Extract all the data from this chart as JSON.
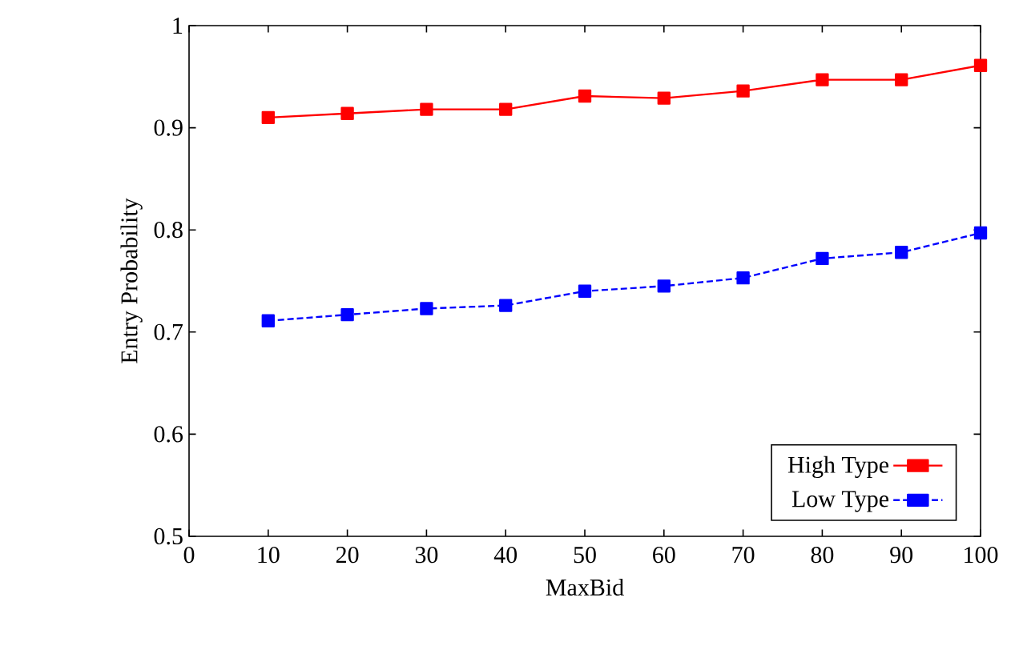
{
  "chart_data": {
    "type": "line",
    "xlabel": "MaxBid",
    "ylabel": "Entry Probability",
    "x": [
      10,
      20,
      30,
      40,
      50,
      60,
      70,
      80,
      90,
      100
    ],
    "series": [
      {
        "name": "High Type",
        "color": "#ff0000",
        "line_style": "solid",
        "values": [
          0.91,
          0.914,
          0.918,
          0.918,
          0.931,
          0.929,
          0.936,
          0.947,
          0.947,
          0.961
        ]
      },
      {
        "name": "Low Type",
        "color": "#0000ff",
        "line_style": "dashed",
        "values": [
          0.711,
          0.717,
          0.723,
          0.726,
          0.74,
          0.745,
          0.753,
          0.772,
          0.778,
          0.797
        ]
      }
    ],
    "xlim": [
      0,
      100
    ],
    "ylim": [
      0.5,
      1
    ],
    "xticks": [
      0,
      10,
      20,
      30,
      40,
      50,
      60,
      70,
      80,
      90,
      100
    ],
    "yticks": [
      0.5,
      0.6,
      0.7,
      0.8,
      0.9,
      1
    ],
    "marker": "square",
    "legend": "bottom right",
    "grid": false
  }
}
